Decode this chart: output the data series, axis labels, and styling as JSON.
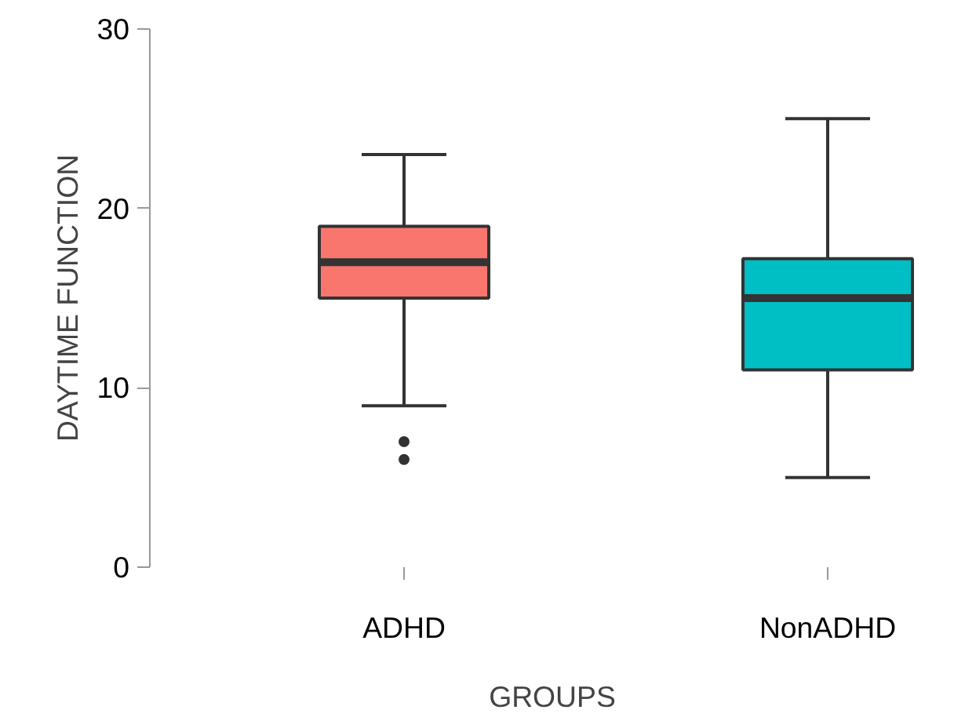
{
  "chart_data": {
    "type": "box",
    "xlabel": "GROUPS",
    "ylabel": "DAYTIME FUNCTION",
    "categories": [
      "ADHD",
      "NonADHD"
    ],
    "colors": [
      "#f8766d",
      "#00bfc4"
    ],
    "boxes": [
      {
        "low": 9,
        "q1": 15,
        "median": 17,
        "q3": 19,
        "high": 23,
        "outliers": [
          7,
          6
        ]
      },
      {
        "low": 5,
        "q1": 11,
        "median": 15,
        "q3": 17.2,
        "high": 25
      }
    ],
    "ylim": [
      0,
      30
    ],
    "yticks": [
      0,
      10,
      20,
      30
    ],
    "grid": false
  }
}
